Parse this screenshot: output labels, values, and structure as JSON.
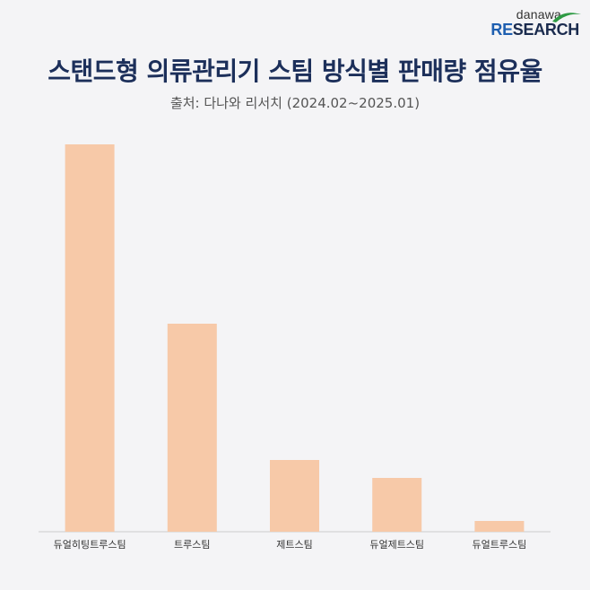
{
  "logo": {
    "top": "danawa",
    "bottom_accent": "RE",
    "bottom_rest": "SEARCH",
    "swoosh_color": "#2e9a44"
  },
  "header": {
    "title": "스탠드형 의류관리기 스팀 방식별 판매량 점유율",
    "subtitle": "출처: 다나와 리서치 (2024.02~2025.01)"
  },
  "colors": {
    "bar": "#f7c9a8",
    "axis": "#cccccc",
    "title": "#1c2f5a",
    "tick_text": "#333333"
  },
  "chart_data": {
    "type": "bar",
    "title": "스탠드형 의류관리기 스팀 방식별 판매량 점유율",
    "subtitle": "출처: 다나와 리서치 (2024.02~2025.01)",
    "categories": [
      "듀얼히팅트루스팀",
      "트루스팀",
      "제트스팀",
      "듀얼제트스팀",
      "듀얼트루스팀"
    ],
    "values": [
      54,
      29,
      10,
      7.5,
      1.5
    ],
    "ylim": [
      0,
      54
    ],
    "grid": false,
    "legend": "none",
    "xlabel": "",
    "ylabel": ""
  }
}
